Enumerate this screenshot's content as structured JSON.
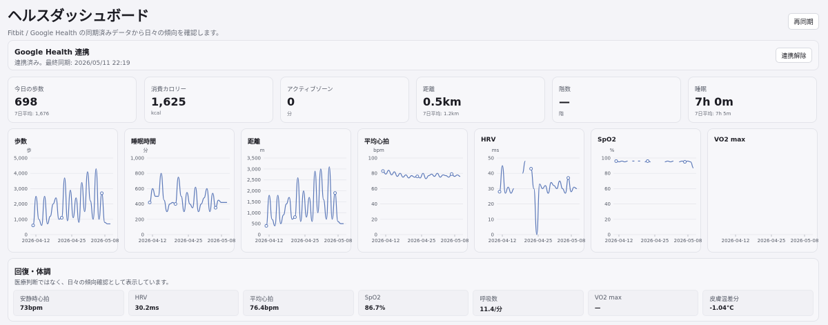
{
  "header": {
    "title": "ヘルスダッシュボード",
    "subtitle": "Fitbit / Google Health の同期済みデータから日々の傾向を確認します。",
    "sync_button": "再同期"
  },
  "google_health": {
    "title": "Google Health 連携",
    "status": "連携済み。最終同期: 2026/05/11 22:19",
    "unlink_button": "連携解除"
  },
  "stats": [
    {
      "label": "今日の歩数",
      "value": "698",
      "sub": "7日平均: 1,676"
    },
    {
      "label": "消費カロリー",
      "value": "1,625",
      "sub": "kcal"
    },
    {
      "label": "アクティブゾーン",
      "value": "0",
      "sub": "分"
    },
    {
      "label": "距離",
      "value": "0.5km",
      "sub": "7日平均: 1.2km"
    },
    {
      "label": "階数",
      "value": "—",
      "sub": "階"
    },
    {
      "label": "睡眠",
      "value": "7h 0m",
      "sub": "7日平均: 7h 5m"
    }
  ],
  "chart_data": [
    {
      "type": "line",
      "title": "歩数",
      "ylabel": "歩",
      "ylim": [
        0,
        5000
      ],
      "yticks": [
        "5,000",
        "4,000",
        "3,000",
        "2,000",
        "1,000",
        "0"
      ],
      "xticks": [
        "2026-04-12",
        "2026-04-25",
        "2026-05-08"
      ],
      "x": [
        0,
        1,
        2,
        3,
        4,
        5,
        6,
        7,
        8,
        9,
        10,
        11,
        12,
        13,
        14,
        15,
        16,
        17,
        18,
        19,
        20,
        21,
        22,
        23,
        24,
        25,
        26,
        27
      ],
      "values": [
        600,
        2500,
        1000,
        600,
        2500,
        700,
        1200,
        2000,
        2400,
        1000,
        1100,
        3700,
        900,
        2900,
        1100,
        2400,
        800,
        3400,
        1500,
        4100,
        2200,
        1000,
        4300,
        1000,
        2700,
        800,
        700,
        700
      ],
      "markers": [
        0,
        10,
        24
      ]
    },
    {
      "type": "line",
      "title": "睡眠時間",
      "ylabel": "分",
      "ylim": [
        0,
        1000
      ],
      "yticks": [
        "1,000",
        "800",
        "600",
        "400",
        "200",
        "0"
      ],
      "xticks": [
        "2026-04-12",
        "2026-04-25",
        "2026-05-08"
      ],
      "x": [
        0,
        1,
        2,
        3,
        4,
        5,
        6,
        7,
        8,
        9,
        10,
        11,
        12,
        13,
        14,
        15,
        16,
        17,
        18,
        19,
        20,
        21,
        22,
        23,
        24,
        25,
        26,
        27
      ],
      "values": [
        420,
        600,
        500,
        500,
        800,
        450,
        300,
        400,
        420,
        400,
        750,
        500,
        300,
        550,
        400,
        350,
        620,
        300,
        400,
        480,
        600,
        300,
        540,
        350,
        450,
        420,
        420,
        420
      ],
      "markers": [
        0,
        9,
        23
      ]
    },
    {
      "type": "line",
      "title": "距離",
      "ylabel": "m",
      "ylim": [
        0,
        3500
      ],
      "yticks": [
        "3,500",
        "3,000",
        "2,500",
        "2,000",
        "1,500",
        "1,000",
        "500",
        "0"
      ],
      "xticks": [
        "2026-04-12",
        "2026-04-25",
        "2026-05-08"
      ],
      "x": [
        0,
        1,
        2,
        3,
        4,
        5,
        6,
        7,
        8,
        9,
        10,
        11,
        12,
        13,
        14,
        15,
        16,
        17,
        18,
        19,
        20,
        21,
        22,
        23,
        24,
        25,
        26,
        27
      ],
      "values": [
        400,
        1800,
        700,
        400,
        1800,
        500,
        900,
        1400,
        1700,
        700,
        800,
        2600,
        600,
        2000,
        800,
        1700,
        600,
        2900,
        1000,
        3000,
        1600,
        700,
        3100,
        700,
        1900,
        600,
        500,
        500
      ],
      "markers": [
        0,
        10,
        24
      ]
    },
    {
      "type": "line",
      "title": "平均心拍",
      "ylabel": "bpm",
      "ylim": [
        0,
        100
      ],
      "yticks": [
        "100",
        "80",
        "60",
        "40",
        "20",
        "0"
      ],
      "xticks": [
        "2026-04-12",
        "2026-04-25",
        "2026-05-08"
      ],
      "x": [
        0,
        1,
        2,
        3,
        4,
        5,
        6,
        7,
        8,
        9,
        10,
        11,
        12,
        13,
        14,
        15,
        16,
        17,
        18,
        19,
        20,
        21,
        22,
        23,
        24,
        25,
        26,
        27
      ],
      "values": [
        83,
        79,
        84,
        78,
        82,
        76,
        80,
        75,
        78,
        74,
        77,
        75,
        76,
        74,
        80,
        73,
        77,
        79,
        76,
        80,
        75,
        78,
        77,
        75,
        79,
        76,
        78,
        76
      ],
      "markers": [
        0,
        12,
        24
      ]
    },
    {
      "type": "line",
      "title": "HRV",
      "ylabel": "ms",
      "ylim": [
        0,
        50
      ],
      "yticks": [
        "50",
        "40",
        "30",
        "20",
        "10",
        "0"
      ],
      "xticks": [
        "2026-04-12",
        "2026-04-25",
        "2026-05-08"
      ],
      "x": [
        0,
        1,
        2,
        3,
        4,
        5,
        6,
        7,
        8,
        9,
        10,
        11,
        12,
        13,
        14,
        15,
        16,
        17,
        18,
        19,
        20,
        21,
        22,
        23,
        24,
        25,
        26,
        27
      ],
      "values": [
        28,
        45,
        27,
        31,
        27,
        30,
        null,
        null,
        40,
        48,
        null,
        43,
        30,
        0,
        33,
        30,
        32,
        27,
        34,
        32,
        30,
        35,
        30,
        27,
        37,
        28,
        31,
        30
      ],
      "markers": [
        0,
        11,
        24
      ]
    },
    {
      "type": "line",
      "title": "SpO2",
      "ylabel": "%",
      "ylim": [
        0,
        100
      ],
      "yticks": [
        "100",
        "80",
        "60",
        "40",
        "20",
        "0"
      ],
      "xticks": [
        "2026-04-12",
        "2026-04-25",
        "2026-05-08"
      ],
      "x": [
        0,
        1,
        2,
        3,
        4,
        5,
        6,
        7,
        8,
        9,
        10,
        11,
        12,
        13,
        14,
        15,
        16,
        17,
        18,
        19,
        20,
        21,
        22,
        23,
        24,
        25,
        26,
        27
      ],
      "values": [
        96,
        95,
        96,
        95,
        96,
        null,
        96,
        null,
        96,
        null,
        95,
        96,
        95,
        null,
        null,
        null,
        null,
        95,
        96,
        95,
        96,
        null,
        95,
        96,
        95,
        96,
        95,
        87
      ],
      "markers": [
        0,
        11,
        24
      ]
    },
    {
      "type": "line",
      "title": "VO2 max",
      "ylabel": "",
      "ylim": [
        0,
        100
      ],
      "yticks": [],
      "xticks": [
        "2026-04-12",
        "2026-04-25",
        "2026-05-08"
      ],
      "x": [],
      "values": [],
      "markers": []
    }
  ],
  "recovery": {
    "title": "回復・体調",
    "description": "医療判断ではなく、日々の傾向確認として表示しています。",
    "items": [
      {
        "label": "安静時心拍",
        "value": "73bpm"
      },
      {
        "label": "HRV",
        "value": "30.2ms"
      },
      {
        "label": "平均心拍",
        "value": "76.4bpm"
      },
      {
        "label": "SpO2",
        "value": "86.7%"
      },
      {
        "label": "呼吸数",
        "value": "11.4/分"
      },
      {
        "label": "VO2 max",
        "value": "—"
      },
      {
        "label": "皮膚温差分",
        "value": "-1.04°C"
      }
    ]
  },
  "colors": {
    "line": "#5b78b8",
    "grid": "#e3e4ea",
    "card_bg": "#f7f7fa",
    "page_bg": "#f4f4f8"
  }
}
